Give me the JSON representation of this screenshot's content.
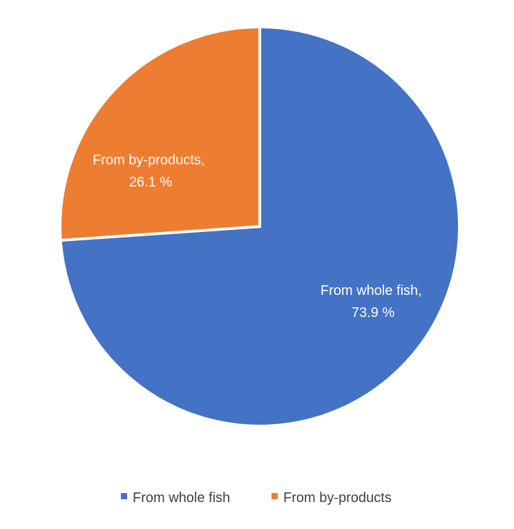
{
  "chart_data": {
    "type": "pie",
    "title": "",
    "series": [
      {
        "values": [
          73.9,
          26.1
        ]
      }
    ],
    "categories": [
      "From whole fish",
      "From by-products"
    ],
    "slices": [
      {
        "label": "From whole fish",
        "value": 73.9,
        "color": "#4472C4",
        "label_line1": "From whole fish,",
        "label_line2": "73.9 %"
      },
      {
        "label": "From by-products",
        "value": 26.1,
        "color": "#ED7D31",
        "label_line1": "From by-products,",
        "label_line2": "26.1 %"
      }
    ],
    "legend": {
      "placement": "bottom",
      "items": [
        {
          "label": "From whole fish",
          "color": "#4472C4"
        },
        {
          "label": "From by-products",
          "color": "#ED7D31"
        }
      ]
    },
    "start": "12 o'clock",
    "direction": "clockwise"
  }
}
